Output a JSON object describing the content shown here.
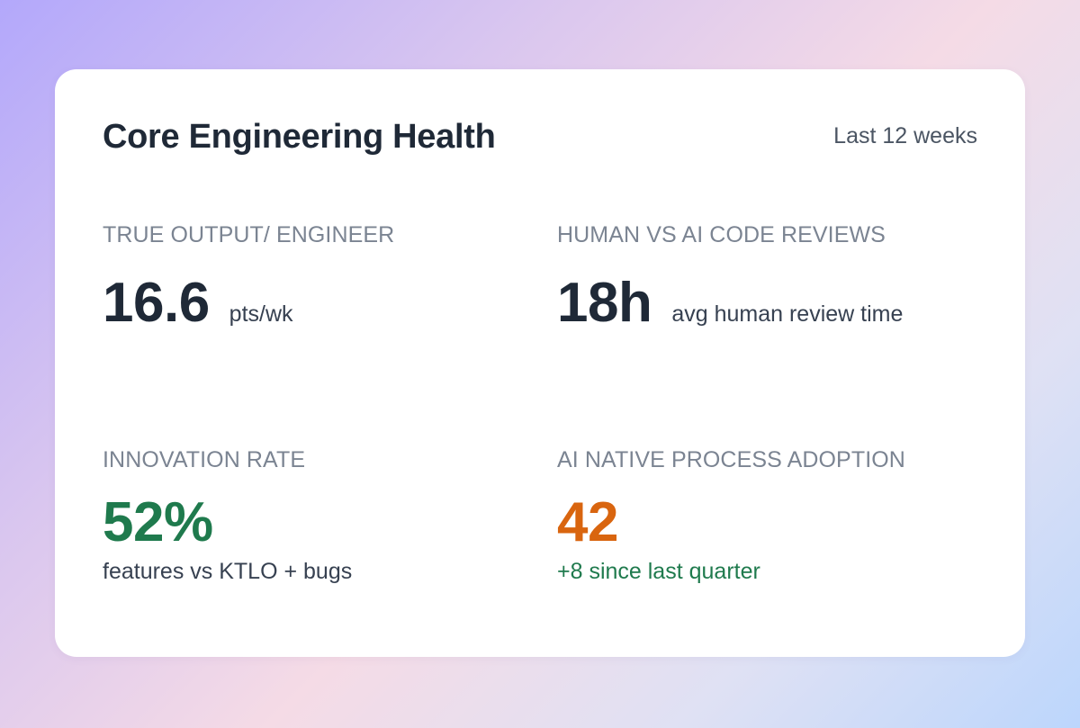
{
  "card": {
    "title": "Core Engineering Health",
    "period": "Last 12 weeks"
  },
  "metrics": {
    "true_output": {
      "label": "TRUE OUTPUT/ ENGINEER",
      "value": "16.6",
      "unit": "pts/wk"
    },
    "code_reviews": {
      "label": "HUMAN VS AI CODE REVIEWS",
      "value": "18h",
      "unit": "avg human review time"
    },
    "innovation_rate": {
      "label": "INNOVATION RATE",
      "value": "52%",
      "sub": "features vs KTLO + bugs"
    },
    "ai_adoption": {
      "label": "AI NATIVE PROCESS ADOPTION",
      "value": "42",
      "sub": "+8 since last quarter"
    }
  },
  "colors": {
    "positive": "#1f7a4d",
    "warning": "#d9650f",
    "text_primary": "#1f2937",
    "text_muted": "#7b8492"
  }
}
